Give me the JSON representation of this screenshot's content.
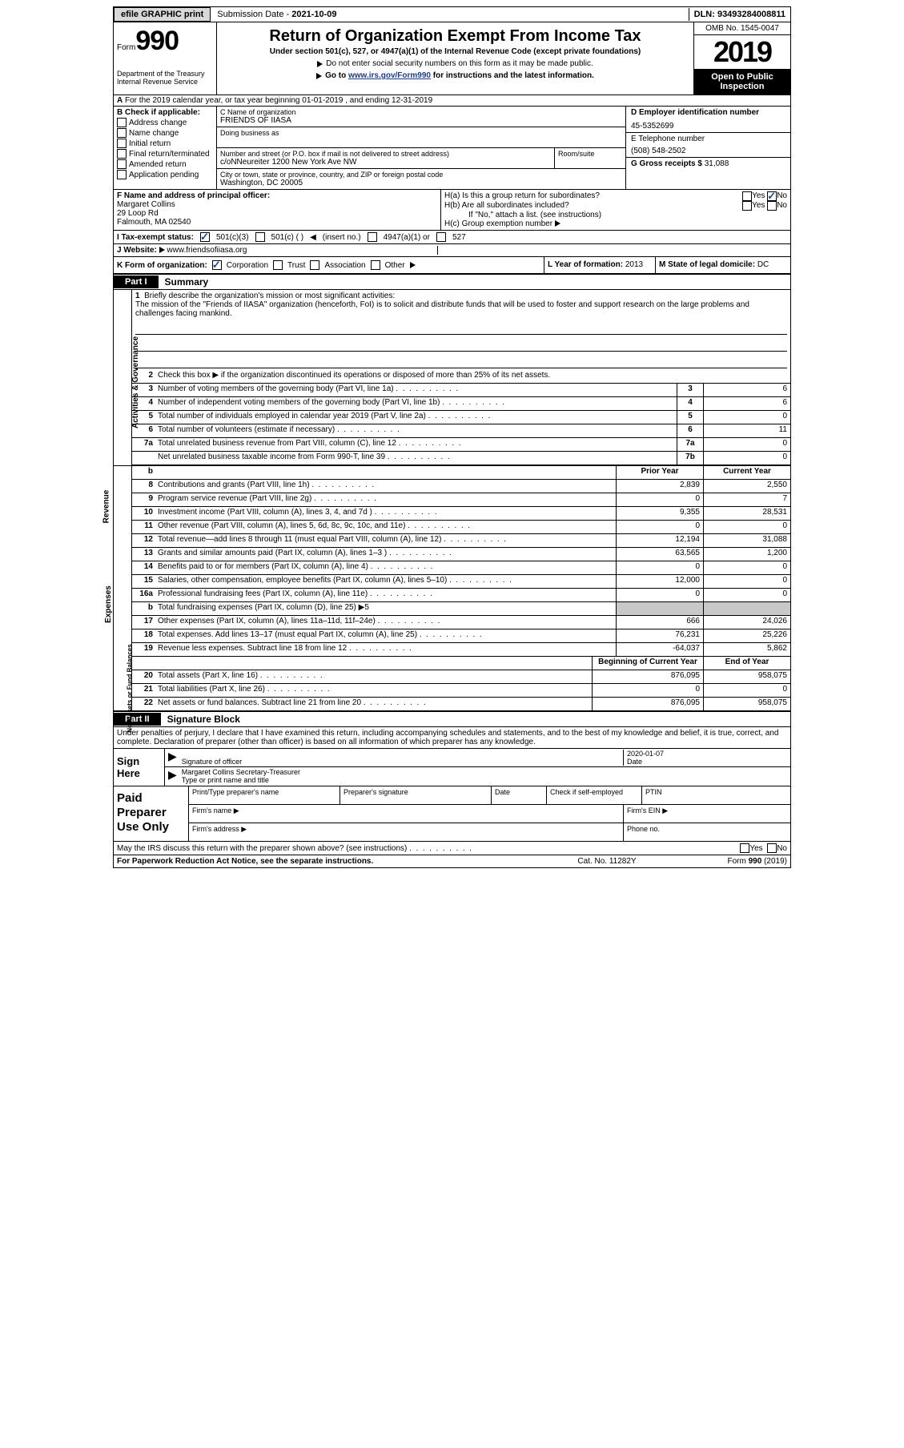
{
  "topbar": {
    "efile": "efile GRAPHIC print",
    "sub_label": "Submission Date - ",
    "sub_date": "2021-10-09",
    "dln": "DLN: 93493284008811"
  },
  "header": {
    "form": "Form",
    "num": "990",
    "dept": "Department of the Treasury\nInternal Revenue Service",
    "title": "Return of Organization Exempt From Income Tax",
    "sub": "Under section 501(c), 527, or 4947(a)(1) of the Internal Revenue Code (except private foundations)",
    "line1": "Do not enter social security numbers on this form as it may be made public.",
    "line2a": "Go to ",
    "line2link": "www.irs.gov/Form990",
    "line2b": " for instructions and the latest information.",
    "omb": "OMB No. 1545-0047",
    "year": "2019",
    "open": "Open to Public Inspection"
  },
  "taxyear": "For the 2019 calendar year, or tax year beginning 01-01-2019    , and ending 12-31-2019",
  "colB": {
    "hdr": "B Check if applicable:",
    "items": [
      "Address change",
      "Name change",
      "Initial return",
      "Final return/terminated",
      "Amended return",
      "Application pending"
    ]
  },
  "colC": {
    "name_lbl": "C Name of organization",
    "name": "FRIENDS OF IIASA",
    "dba_lbl": "Doing business as",
    "addr_lbl": "Number and street (or P.O. box if mail is not delivered to street address)",
    "room_lbl": "Room/suite",
    "addr": "c/oNNeureiter 1200 New York Ave NW",
    "city_lbl": "City or town, state or province, country, and ZIP or foreign postal code",
    "city": "Washington, DC  20005"
  },
  "colD": {
    "ein_lbl": "D Employer identification number",
    "ein": "45-5352699",
    "tel_lbl": "E Telephone number",
    "tel": "(508) 548-2502",
    "gross_lbl": "G Gross receipts $ ",
    "gross": "31,088"
  },
  "rowF": {
    "lbl": "F  Name and address of principal officer:",
    "name": "Margaret Collins",
    "addr1": "29 Loop Rd",
    "addr2": "Falmouth, MA  02540"
  },
  "rowH": {
    "a_lbl": "H(a)  Is this a group return for subordinates?",
    "b_lbl": "H(b)  Are all subordinates included?",
    "b_note": "If \"No,\" attach a list. (see instructions)",
    "c_lbl": "H(c)  Group exemption number ",
    "yes": "Yes",
    "no": "No"
  },
  "rowI": {
    "lbl": "I   Tax-exempt status:",
    "opt1": "501(c)(3)",
    "opt2": "501(c) (  )",
    "opt2b": "(insert no.)",
    "opt3": "4947(a)(1) or",
    "opt4": "527"
  },
  "rowJ": {
    "lbl": "J   Website: ",
    "val": "www.friendsofiiasa.org"
  },
  "rowK": {
    "lbl": "K Form of organization:",
    "corp": "Corporation",
    "trust": "Trust",
    "assoc": "Association",
    "other": "Other"
  },
  "rowL": {
    "lbl": "L Year of formation: ",
    "val": "2013"
  },
  "rowM": {
    "lbl": "M State of legal domicile: ",
    "val": "DC"
  },
  "part1": {
    "tab": "Part I",
    "title": "Summary"
  },
  "mission": {
    "num": "1",
    "lbl": "Briefly describe the organization's mission or most significant activities:",
    "txt": "The mission of the \"Friends of IIASA\" organization (henceforth, FoI) is to solicit and distribute funds that will be used to foster and support research on the large problems and challenges facing mankind."
  },
  "line2": "Check this box ▶     if the organization discontinued its operations or disposed of more than 25% of its net assets.",
  "summary_rows_a": [
    {
      "n": "3",
      "t": "Number of voting members of the governing body (Part VI, line 1a)",
      "b": "3",
      "v": "6"
    },
    {
      "n": "4",
      "t": "Number of independent voting members of the governing body (Part VI, line 1b)",
      "b": "4",
      "v": "6"
    },
    {
      "n": "5",
      "t": "Total number of individuals employed in calendar year 2019 (Part V, line 2a)",
      "b": "5",
      "v": "0"
    },
    {
      "n": "6",
      "t": "Total number of volunteers (estimate if necessary)",
      "b": "6",
      "v": "11"
    },
    {
      "n": "7a",
      "t": "Total unrelated business revenue from Part VIII, column (C), line 12",
      "b": "7a",
      "v": "0"
    },
    {
      "n": "",
      "t": "Net unrelated business taxable income from Form 990-T, line 39",
      "b": "7b",
      "v": "0"
    }
  ],
  "cols_hdr": {
    "prior": "Prior Year",
    "current": "Current Year"
  },
  "revenue": [
    {
      "n": "8",
      "t": "Contributions and grants (Part VIII, line 1h)",
      "p": "2,839",
      "c": "2,550"
    },
    {
      "n": "9",
      "t": "Program service revenue (Part VIII, line 2g)",
      "p": "0",
      "c": "7"
    },
    {
      "n": "10",
      "t": "Investment income (Part VIII, column (A), lines 3, 4, and 7d )",
      "p": "9,355",
      "c": "28,531"
    },
    {
      "n": "11",
      "t": "Other revenue (Part VIII, column (A), lines 5, 6d, 8c, 9c, 10c, and 11e)",
      "p": "0",
      "c": "0"
    },
    {
      "n": "12",
      "t": "Total revenue—add lines 8 through 11 (must equal Part VIII, column (A), line 12)",
      "p": "12,194",
      "c": "31,088"
    }
  ],
  "expenses": [
    {
      "n": "13",
      "t": "Grants and similar amounts paid (Part IX, column (A), lines 1–3 )",
      "p": "63,565",
      "c": "1,200"
    },
    {
      "n": "14",
      "t": "Benefits paid to or for members (Part IX, column (A), line 4)",
      "p": "0",
      "c": "0"
    },
    {
      "n": "15",
      "t": "Salaries, other compensation, employee benefits (Part IX, column (A), lines 5–10)",
      "p": "12,000",
      "c": "0"
    },
    {
      "n": "16a",
      "t": "Professional fundraising fees (Part IX, column (A), line 11e)",
      "p": "0",
      "c": "0"
    },
    {
      "n": "b",
      "t": "Total fundraising expenses (Part IX, column (D), line 25) ▶5",
      "p": "shade",
      "c": "shade"
    },
    {
      "n": "17",
      "t": "Other expenses (Part IX, column (A), lines 11a–11d, 11f–24e)",
      "p": "666",
      "c": "24,026"
    },
    {
      "n": "18",
      "t": "Total expenses. Add lines 13–17 (must equal Part IX, column (A), line 25)",
      "p": "76,231",
      "c": "25,226"
    },
    {
      "n": "19",
      "t": "Revenue less expenses. Subtract line 18 from line 12",
      "p": "-64,037",
      "c": "5,862"
    }
  ],
  "netassets_hdr": {
    "boy": "Beginning of Current Year",
    "eoy": "End of Year"
  },
  "netassets": [
    {
      "n": "20",
      "t": "Total assets (Part X, line 16)",
      "p": "876,095",
      "c": "958,075"
    },
    {
      "n": "21",
      "t": "Total liabilities (Part X, line 26)",
      "p": "0",
      "c": "0"
    },
    {
      "n": "22",
      "t": "Net assets or fund balances. Subtract line 21 from line 20",
      "p": "876,095",
      "c": "958,075"
    }
  ],
  "sidelabels": {
    "a": "Activities & Governance",
    "r": "Revenue",
    "e": "Expenses",
    "n": "Net Assets or Fund Balances"
  },
  "part2": {
    "tab": "Part II",
    "title": "Signature Block"
  },
  "sig": {
    "intro": "Under penalties of perjury, I declare that I have examined this return, including accompanying schedules and statements, and to the best of my knowledge and belief, it is true, correct, and complete. Declaration of preparer (other than officer) is based on all information of which preparer has any knowledge.",
    "here": "Sign Here",
    "sig_lbl": "Signature of officer",
    "date_lbl": "Date",
    "date": "2020-01-07",
    "name": "Margaret Collins Secretary-Treasurer",
    "name_lbl": "Type or print name and title"
  },
  "prep": {
    "lab": "Paid Preparer Use Only",
    "c1": "Print/Type preparer's name",
    "c2": "Preparer's signature",
    "c3": "Date",
    "c4a": "Check      if self-employed",
    "c5": "PTIN",
    "firm_name": "Firm's name   ▶",
    "firm_ein": "Firm's EIN ▶",
    "firm_addr": "Firm's address ▶",
    "phone": "Phone no."
  },
  "footer": {
    "discuss": "May the IRS discuss this return with the preparer shown above? (see instructions)",
    "yes": "Yes",
    "no": "No",
    "pra": "For Paperwork Reduction Act Notice, see the separate instructions.",
    "cat": "Cat. No. 11282Y",
    "form": "Form 990 (2019)"
  }
}
